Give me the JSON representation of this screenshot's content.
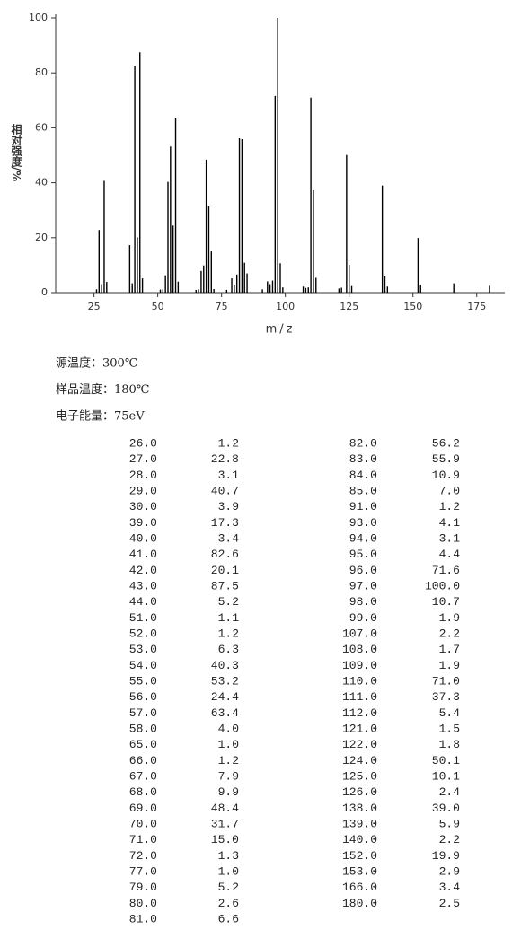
{
  "chart_data": {
    "type": "stem",
    "ylabel": "相对强度/%",
    "xlabel": "m/z",
    "color": "#000000",
    "x": [
      26,
      27,
      28,
      29,
      30,
      39,
      40,
      41,
      42,
      43,
      44,
      51,
      52,
      53,
      54,
      55,
      56,
      57,
      58,
      65,
      66,
      67,
      68,
      69,
      70,
      71,
      72,
      77,
      79,
      80,
      81,
      82,
      83,
      84,
      85,
      91,
      93,
      94,
      95,
      96,
      97,
      98,
      99,
      107,
      108,
      109,
      110,
      111,
      112,
      121,
      122,
      124,
      125,
      126,
      138,
      139,
      140,
      152,
      153,
      166,
      180
    ],
    "values": [
      1.2,
      22.8,
      3.1,
      40.7,
      3.9,
      17.3,
      3.4,
      82.6,
      20.1,
      87.5,
      5.2,
      1.1,
      1.2,
      6.3,
      40.3,
      53.2,
      24.4,
      63.4,
      4.0,
      1.0,
      1.2,
      7.9,
      9.9,
      48.4,
      31.7,
      15.0,
      1.3,
      1.0,
      5.2,
      2.6,
      6.6,
      56.2,
      55.9,
      10.9,
      7.0,
      1.2,
      4.1,
      3.1,
      4.4,
      71.6,
      100.0,
      10.7,
      1.9,
      2.2,
      1.7,
      1.9,
      71.0,
      37.3,
      5.4,
      1.5,
      1.8,
      50.1,
      10.1,
      2.4,
      39.0,
      5.9,
      2.2,
      19.9,
      2.9,
      3.4,
      2.5
    ],
    "xlim": [
      10,
      186
    ],
    "xticks": [
      25,
      50,
      75,
      100,
      125,
      150,
      175
    ],
    "ylim": [
      0,
      100
    ],
    "yticks": [
      0,
      20,
      40,
      60,
      80,
      100
    ]
  },
  "conditions": [
    "源温度：300℃",
    "样品温度：180℃",
    "电子能量：75eV"
  ],
  "table": {
    "rows": [
      [
        "26.0",
        "1.2"
      ],
      [
        "27.0",
        "22.8"
      ],
      [
        "28.0",
        "3.1"
      ],
      [
        "29.0",
        "40.7"
      ],
      [
        "30.0",
        "3.9"
      ],
      [
        "39.0",
        "17.3"
      ],
      [
        "40.0",
        "3.4"
      ],
      [
        "41.0",
        "82.6"
      ],
      [
        "42.0",
        "20.1"
      ],
      [
        "43.0",
        "87.5"
      ],
      [
        "44.0",
        "5.2"
      ],
      [
        "51.0",
        "1.1"
      ],
      [
        "52.0",
        "1.2"
      ],
      [
        "53.0",
        "6.3"
      ],
      [
        "54.0",
        "40.3"
      ],
      [
        "55.0",
        "53.2"
      ],
      [
        "56.0",
        "24.4"
      ],
      [
        "57.0",
        "63.4"
      ],
      [
        "58.0",
        "4.0"
      ],
      [
        "65.0",
        "1.0"
      ],
      [
        "66.0",
        "1.2"
      ],
      [
        "67.0",
        "7.9"
      ],
      [
        "68.0",
        "9.9"
      ],
      [
        "69.0",
        "48.4"
      ],
      [
        "70.0",
        "31.7"
      ],
      [
        "71.0",
        "15.0"
      ],
      [
        "72.0",
        "1.3"
      ],
      [
        "77.0",
        "1.0"
      ],
      [
        "79.0",
        "5.2"
      ],
      [
        "80.0",
        "2.6"
      ],
      [
        "81.0",
        "6.6"
      ],
      [
        "82.0",
        "56.2"
      ],
      [
        "83.0",
        "55.9"
      ],
      [
        "84.0",
        "10.9"
      ],
      [
        "85.0",
        "7.0"
      ],
      [
        "91.0",
        "1.2"
      ],
      [
        "93.0",
        "4.1"
      ],
      [
        "94.0",
        "3.1"
      ],
      [
        "95.0",
        "4.4"
      ],
      [
        "96.0",
        "71.6"
      ],
      [
        "97.0",
        "100.0"
      ],
      [
        "98.0",
        "10.7"
      ],
      [
        "99.0",
        "1.9"
      ],
      [
        "107.0",
        "2.2"
      ],
      [
        "108.0",
        "1.7"
      ],
      [
        "109.0",
        "1.9"
      ],
      [
        "110.0",
        "71.0"
      ],
      [
        "111.0",
        "37.3"
      ],
      [
        "112.0",
        "5.4"
      ],
      [
        "121.0",
        "1.5"
      ],
      [
        "122.0",
        "1.8"
      ],
      [
        "124.0",
        "50.1"
      ],
      [
        "125.0",
        "10.1"
      ],
      [
        "126.0",
        "2.4"
      ],
      [
        "138.0",
        "39.0"
      ],
      [
        "139.0",
        "5.9"
      ],
      [
        "140.0",
        "2.2"
      ],
      [
        "152.0",
        "19.9"
      ],
      [
        "153.0",
        "2.9"
      ],
      [
        "166.0",
        "3.4"
      ],
      [
        "180.0",
        "2.5"
      ]
    ]
  }
}
